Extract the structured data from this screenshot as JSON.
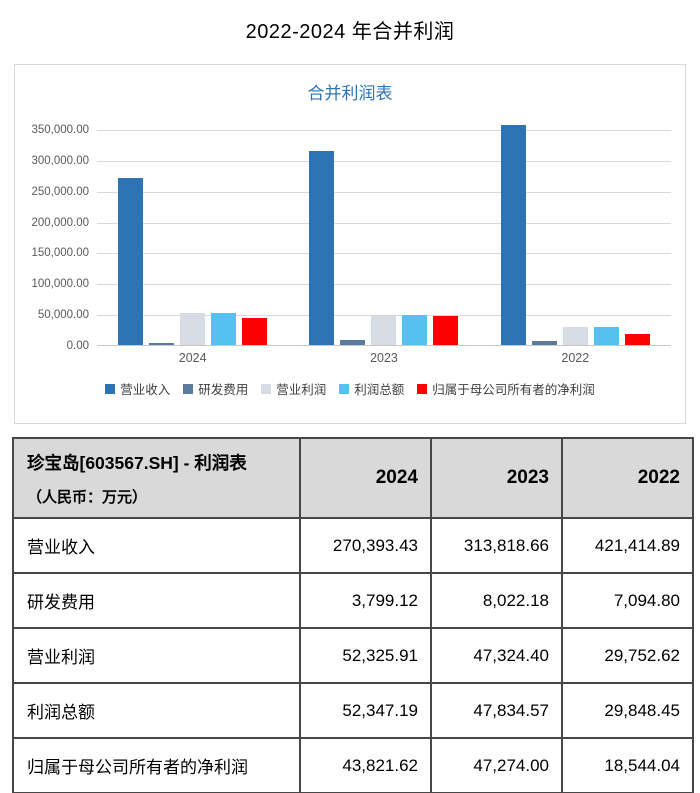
{
  "page_title": "2022-2024 年合并利润",
  "colors": {
    "accent_blue": "#2E74B5",
    "grid": "#D9D9D9",
    "axis_text": "#595959",
    "table_border": "#474747",
    "table_header_bg": "#D9D9D9",
    "series_colors": [
      "#2E74B5",
      "#5B7B9D",
      "#D6DCE4",
      "#54C2F0",
      "#FF0000"
    ]
  },
  "chart_data": {
    "type": "bar",
    "title": "合并利润表",
    "categories": [
      "2024",
      "2023",
      "2022"
    ],
    "series": [
      {
        "name": "营业收入",
        "color": "#2E74B5",
        "values": [
          270393.43,
          313818.66,
          421414.89
        ]
      },
      {
        "name": "研发费用",
        "color": "#5B7B9D",
        "values": [
          3799.12,
          8022.18,
          7094.8
        ]
      },
      {
        "name": "营业利润",
        "color": "#D6DCE4",
        "values": [
          52325.91,
          47324.4,
          29752.62
        ]
      },
      {
        "name": "利润总额",
        "color": "#54C2F0",
        "values": [
          52347.19,
          47834.57,
          29848.45
        ]
      },
      {
        "name": "归属于母公司所有者的净利润",
        "color": "#FF0000",
        "values": [
          43821.62,
          47274.0,
          18544.04
        ]
      }
    ],
    "ylim": [
      0,
      350000
    ],
    "ytick_step": 50000,
    "ytick_labels": [
      "350,000.00",
      "300,000.00",
      "250,000.00",
      "200,000.00",
      "150,000.00",
      "100,000.00",
      "50,000.00",
      "0.00"
    ],
    "grid": true,
    "legend_position": "bottom",
    "note": "2022 营业收入 bar (421,414.89) exceeds axis max and is clipped at plot top"
  },
  "table": {
    "header": {
      "title_line1": "珍宝岛[603567.SH] - 利润表",
      "title_line2": "（人民币：万元）",
      "year_columns": [
        "2024",
        "2023",
        "2022"
      ]
    },
    "rows": [
      {
        "label": "营业收入",
        "values": [
          "270,393.43",
          "313,818.66",
          "421,414.89"
        ]
      },
      {
        "label": "研发费用",
        "values": [
          "3,799.12",
          "8,022.18",
          "7,094.80"
        ]
      },
      {
        "label": "营业利润",
        "values": [
          "52,325.91",
          "47,324.40",
          "29,752.62"
        ]
      },
      {
        "label": "利润总额",
        "values": [
          "52,347.19",
          "47,834.57",
          "29,848.45"
        ]
      },
      {
        "label": "归属于母公司所有者的净利润",
        "values": [
          "43,821.62",
          "47,274.00",
          "18,544.04"
        ]
      }
    ]
  }
}
